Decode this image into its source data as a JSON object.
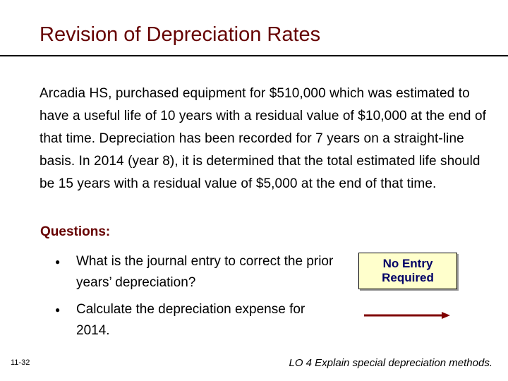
{
  "slide": {
    "title": "Revision of Depreciation Rates",
    "paragraph": "Arcadia HS, purchased equipment for $510,000 which was estimated to have a useful life of 10 years with a residual value of $10,000 at the end of that time.  Depreciation has been recorded for 7 years on a straight-line basis. In 2014 (year 8), it is determined that the total estimated life should be 15 years with a residual value of $5,000 at the end of that time.",
    "questions_heading": "Questions:",
    "questions": [
      "What is the journal entry to correct the prior years’ depreciation?",
      "Calculate the depreciation expense for 2014."
    ],
    "answer_box": "No Entry\nRequired",
    "slide_number": "11-32",
    "learning_objective": "LO 4  Explain special depreciation methods."
  },
  "colors": {
    "title": "#660000",
    "heading": "#660000",
    "answer_text": "#000066",
    "answer_bg": "#ffffcc",
    "arrow": "#800000"
  }
}
